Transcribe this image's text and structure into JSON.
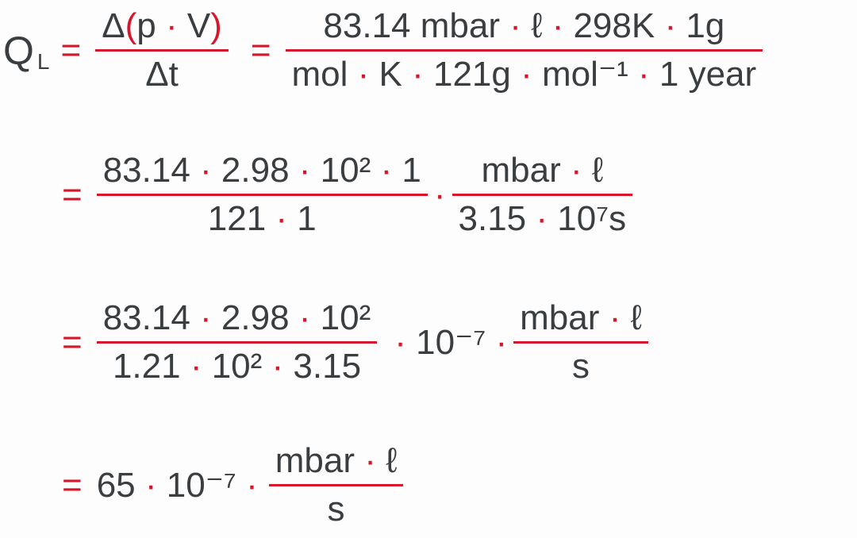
{
  "colors": {
    "text": "#3b3e41",
    "accent": "#d7152b"
  },
  "row1": {
    "lhs_symbol": "Q",
    "lhs_subscript": "L",
    "equals": "=",
    "frac1": {
      "num_delta": "Δ",
      "num_open": "(",
      "num_body": "p · V",
      "num_close": ")",
      "den": "Δt"
    },
    "frac2": {
      "num": "83.14 mbar · ℓ · 298K · 1g",
      "den": "mol · K · 121g · mol⁻¹ · 1 year"
    }
  },
  "row2": {
    "equals": "=",
    "frac1": {
      "num": "83.14 · 2.98 · 10² · 1",
      "den": "121 · 1"
    },
    "op": "·",
    "frac2": {
      "num": "mbar · ℓ",
      "den": "3.15 · 10⁷s"
    }
  },
  "row3": {
    "equals": "=",
    "frac1": {
      "num": "83.14 · 2.98 · 10²",
      "den": "1.21 · 10² · 3.15"
    },
    "factor": "· 10⁻⁷ ·",
    "frac2": {
      "num": "mbar · ℓ",
      "den": "s"
    }
  },
  "row4": {
    "equals": "=",
    "factor": "65 · 10⁻⁷ ·",
    "frac": {
      "num": "mbar · ℓ",
      "den": "s"
    }
  }
}
